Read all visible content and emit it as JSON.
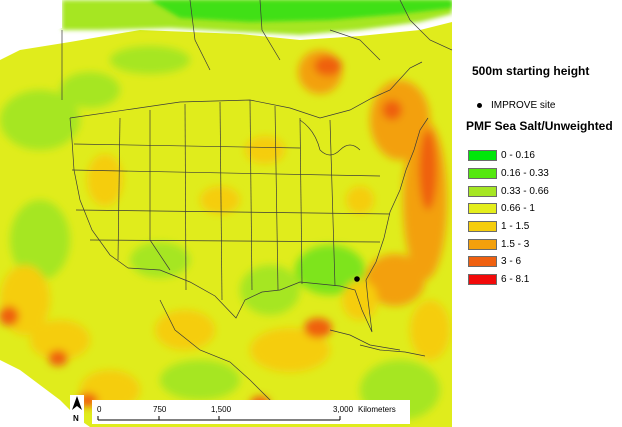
{
  "legend": {
    "height_label": "500m starting height",
    "site_label": "IMPROVE site",
    "field_title": "PMF Sea Salt/Unweighted",
    "classes": [
      {
        "label": "0 - 0.16",
        "color": "#00e60a"
      },
      {
        "label": "0.16 - 0.33",
        "color": "#55e80f"
      },
      {
        "label": "0.33 - 0.66",
        "color": "#a6e623"
      },
      {
        "label": "0.66 - 1",
        "color": "#e4ee1c"
      },
      {
        "label": "1 - 1.5",
        "color": "#f5cd0c"
      },
      {
        "label": "1.5 - 3",
        "color": "#f3a00c"
      },
      {
        "label": "3 - 6",
        "color": "#ef6010"
      },
      {
        "label": "6 - 8.1",
        "color": "#f20a0a"
      }
    ]
  },
  "scalebar": {
    "ticks": [
      "0",
      "750",
      "1,500",
      "3,000"
    ],
    "units": "Kilometers"
  },
  "north_arrow": {
    "label": "N"
  }
}
